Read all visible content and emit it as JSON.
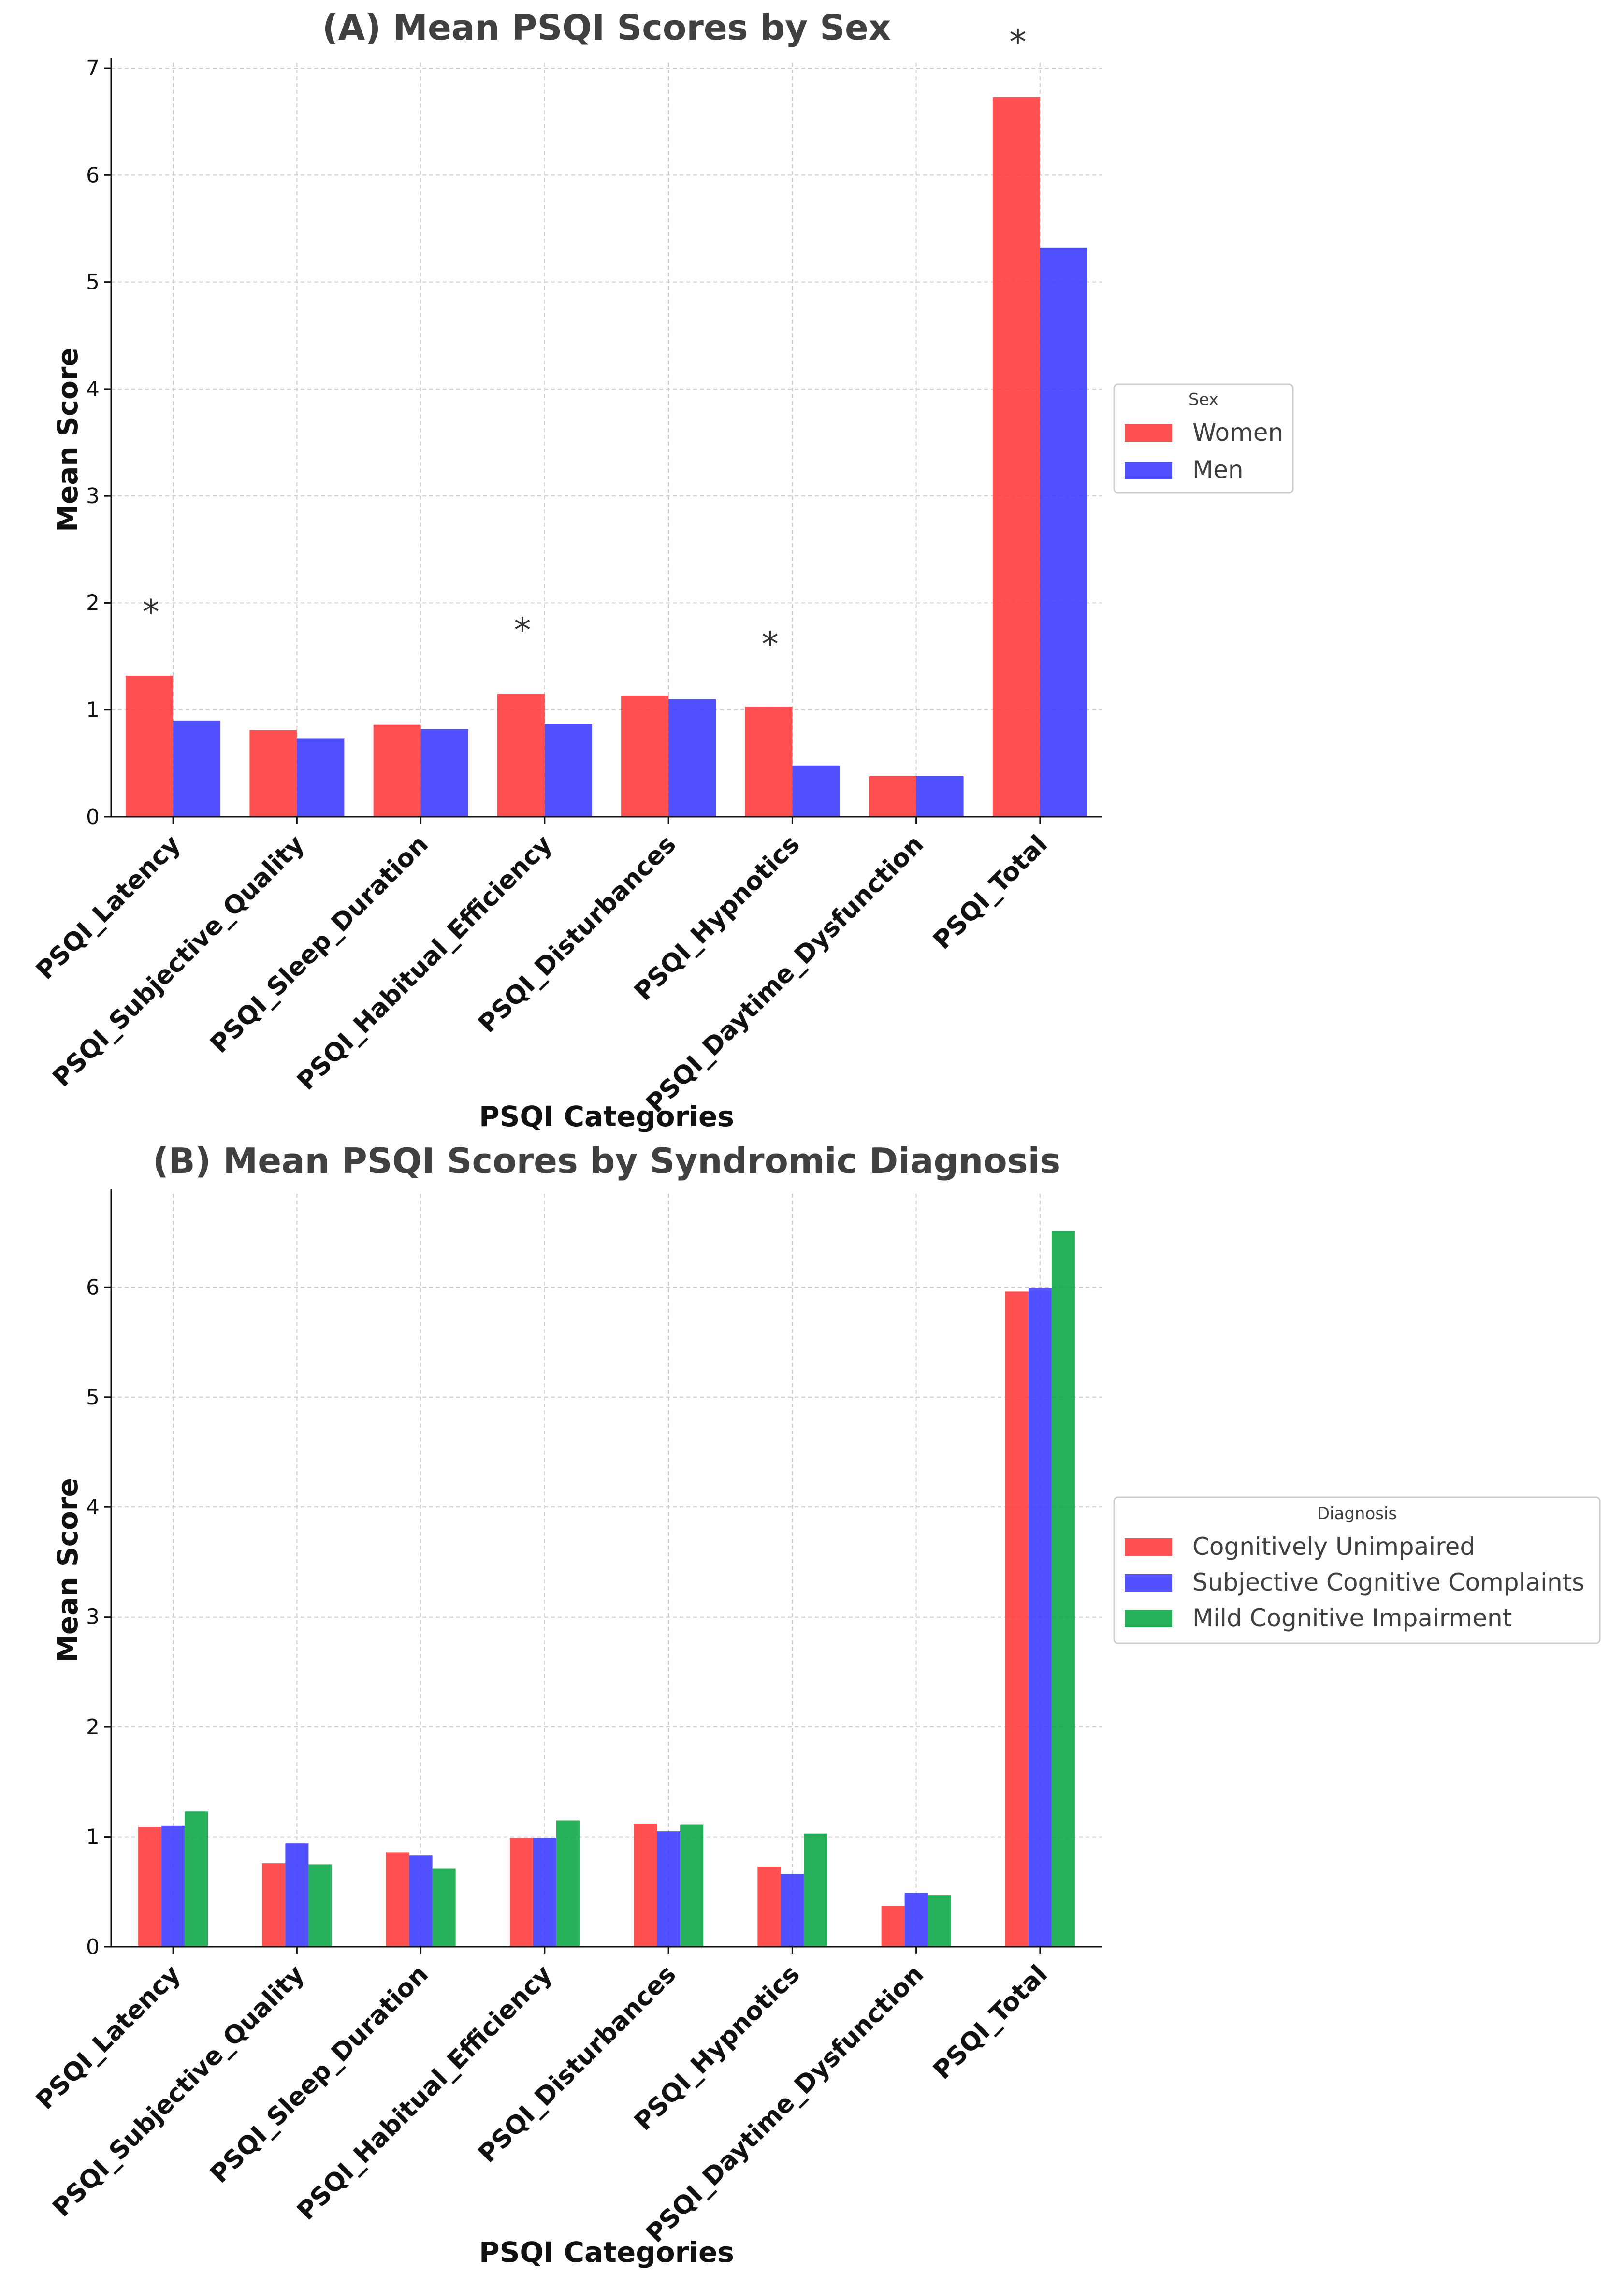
{
  "chart_data": [
    {
      "type": "bar",
      "title": "(A) Mean PSQI Scores by Sex",
      "xlabel": "PSQI Categories",
      "ylabel": "Mean Score",
      "ylim": [
        0,
        7.05
      ],
      "yticks": [
        "0",
        "1",
        "2",
        "3",
        "4",
        "5",
        "6",
        "7"
      ],
      "grid": true,
      "legend_title": "Sex",
      "legend_position": "center-right-outside",
      "categories": [
        "PSQI_Latency",
        "PSQI_Subjective_Quality",
        "PSQI_Sleep_Duration",
        "PSQI_Habitual_Efficiency",
        "PSQI_Disturbances",
        "PSQI_Hypnotics",
        "PSQI_Daytime_Dysfunction",
        "PSQI_Total"
      ],
      "series": [
        {
          "name": "Women",
          "color": "#ff3333",
          "values": [
            1.32,
            0.81,
            0.86,
            1.15,
            1.13,
            1.03,
            0.38,
            6.73
          ]
        },
        {
          "name": "Men",
          "color": "#3333ff",
          "values": [
            0.9,
            0.73,
            0.82,
            0.87,
            1.1,
            0.48,
            0.38,
            5.32
          ]
        }
      ],
      "significance": [
        {
          "category": "PSQI_Latency",
          "label": "*",
          "y": 1.95
        },
        {
          "category": "PSQI_Habitual_Efficiency",
          "label": "*",
          "y": 1.78
        },
        {
          "category": "PSQI_Hypnotics",
          "label": "*",
          "y": 1.65
        },
        {
          "category": "PSQI_Total",
          "label": "*",
          "y": 7.28
        }
      ]
    },
    {
      "type": "bar",
      "title": "(B) Mean PSQI Scores by Syndromic Diagnosis",
      "xlabel": "PSQI Categories",
      "ylabel": "Mean Score",
      "ylim": [
        0,
        6.85
      ],
      "yticks": [
        "0",
        "1",
        "2",
        "3",
        "4",
        "5",
        "6"
      ],
      "grid": true,
      "legend_title": "Diagnosis",
      "legend_position": "center-right-outside",
      "categories": [
        "PSQI_Latency",
        "PSQI_Subjective_Quality",
        "PSQI_Sleep_Duration",
        "PSQI_Habitual_Efficiency",
        "PSQI_Disturbances",
        "PSQI_Hypnotics",
        "PSQI_Daytime_Dysfunction",
        "PSQI_Total"
      ],
      "series": [
        {
          "name": "Cognitively Unimpaired",
          "color": "#ff3333",
          "values": [
            1.09,
            0.76,
            0.86,
            0.99,
            1.12,
            0.73,
            0.37,
            5.96
          ]
        },
        {
          "name": "Subjective Cognitive Complaints",
          "color": "#3333ff",
          "values": [
            1.1,
            0.94,
            0.83,
            0.99,
            1.05,
            0.66,
            0.49,
            5.99
          ]
        },
        {
          "name": "Mild Cognitive Impairment",
          "color": "#00a33d",
          "values": [
            1.23,
            0.75,
            0.71,
            1.15,
            1.11,
            1.03,
            0.47,
            6.51
          ]
        }
      ]
    }
  ]
}
